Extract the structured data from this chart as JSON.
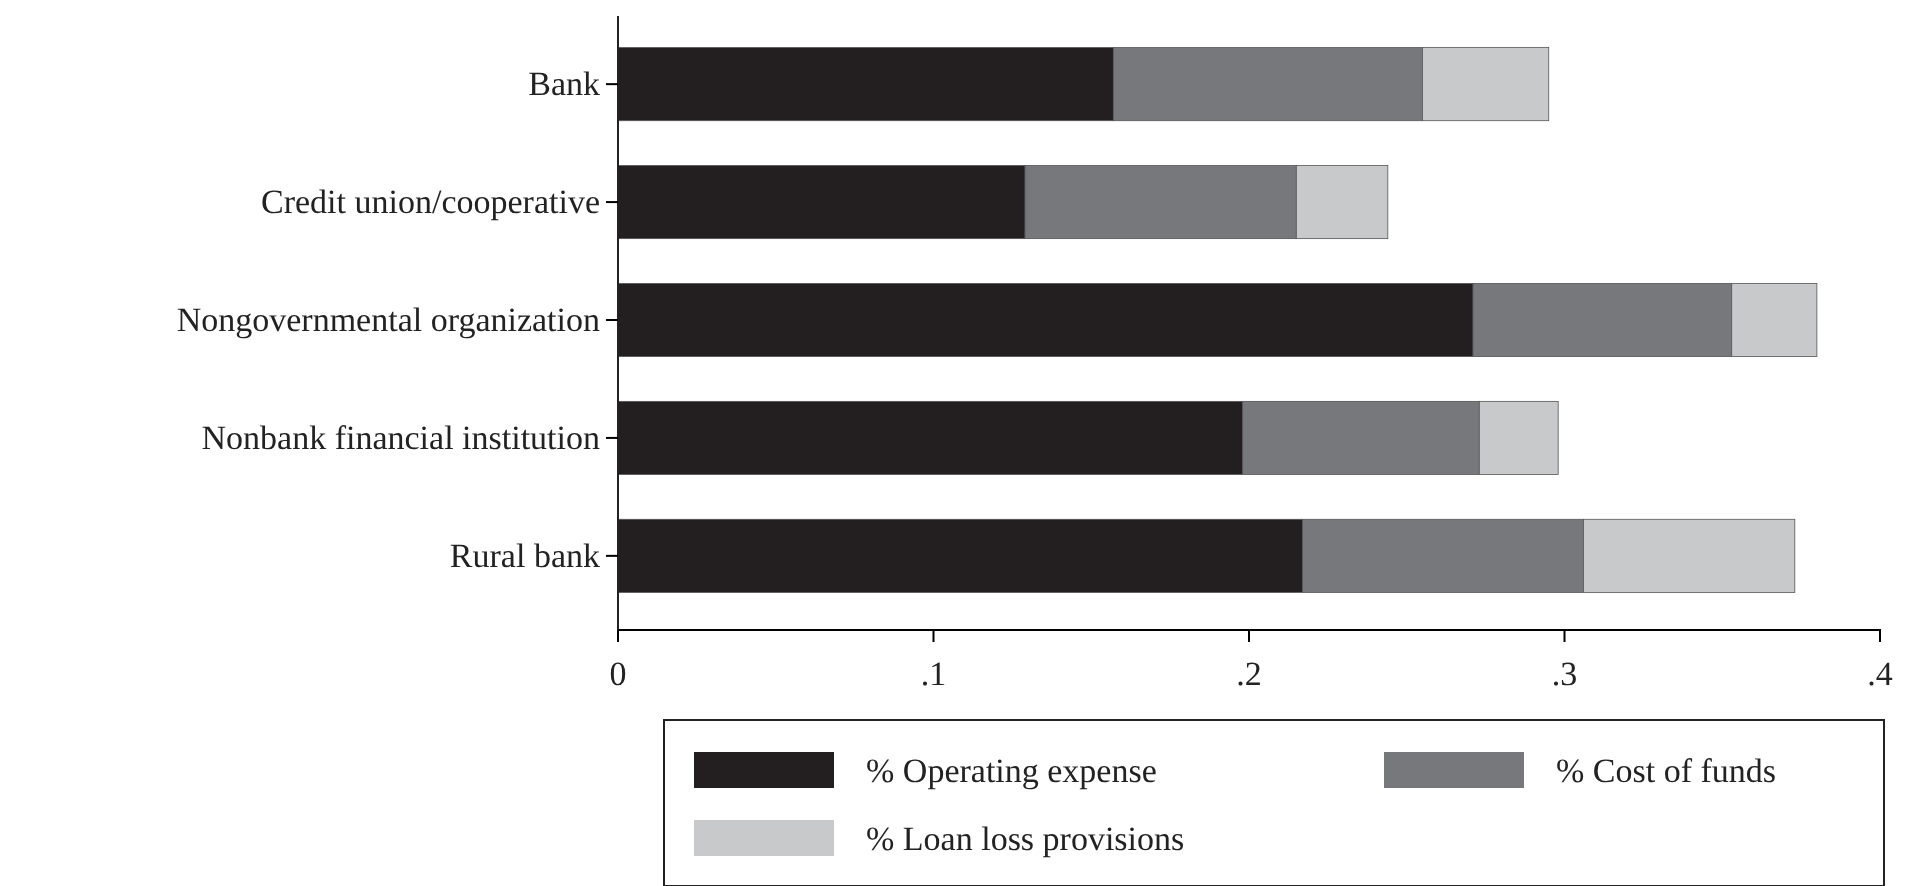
{
  "chart_data": {
    "type": "bar",
    "orientation": "horizontal",
    "stacked": true,
    "categories": [
      "Bank",
      "Credit union/cooperative",
      "Nongovernmental organization",
      "Nonbank financial institution",
      "Rural bank"
    ],
    "series": [
      {
        "name": "% Operating expense",
        "color": "#231f20",
        "values": [
          0.157,
          0.129,
          0.271,
          0.198,
          0.217
        ]
      },
      {
        "name": "% Cost of funds",
        "color": "#77787b",
        "values": [
          0.098,
          0.086,
          0.082,
          0.075,
          0.089
        ]
      },
      {
        "name": "% Loan loss provisions",
        "color": "#c8c9ca",
        "values": [
          0.04,
          0.029,
          0.027,
          0.025,
          0.067
        ]
      }
    ],
    "xlim": [
      0,
      0.4
    ],
    "xticks": [
      0,
      {
        "value": 0.1,
        "label": ".1"
      },
      {
        "value": 0.2,
        "label": ".2"
      },
      {
        "value": 0.3,
        "label": ".3"
      },
      {
        "value": 0.4,
        "label": ".4"
      }
    ],
    "grid": false,
    "legend": "bottom"
  }
}
